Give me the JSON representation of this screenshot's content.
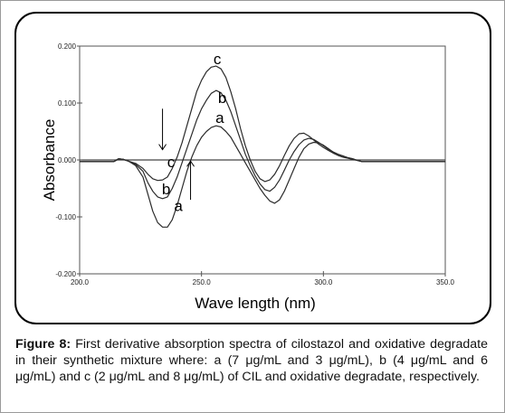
{
  "chart_data": {
    "type": "line",
    "xlabel": "Wave length (nm)",
    "ylabel": "Absorbance",
    "xlim": [
      200.0,
      350.0
    ],
    "ylim": [
      -0.2,
      0.2
    ],
    "x_ticks": [
      "200.0",
      "250.0",
      "300.0",
      "350.0"
    ],
    "y_ticks": [
      "0.200",
      "0.100",
      "0.000",
      "-0.100",
      "-0.200"
    ],
    "x_tick_values": [
      200,
      250,
      300,
      350
    ],
    "y_tick_values": [
      0.2,
      0.1,
      0.0,
      -0.1,
      -0.2
    ],
    "grid": false,
    "series": [
      {
        "name": "a",
        "color": "#2b2b2b",
        "x": [
          200,
          210,
          214,
          216,
          218,
          220,
          223,
          226,
          228,
          230,
          232,
          234,
          236,
          238,
          240,
          242,
          244,
          246,
          248,
          250,
          252,
          254,
          256,
          258,
          260,
          262,
          264,
          266,
          268,
          270,
          272,
          274,
          276,
          278,
          280,
          282,
          284,
          286,
          288,
          290,
          292,
          294,
          296,
          298,
          300,
          302,
          304,
          306,
          308,
          310,
          312,
          314,
          316,
          318,
          320,
          322,
          325,
          330,
          340,
          350
        ],
        "y": [
          -0.003,
          -0.003,
          -0.003,
          0.002,
          0.001,
          -0.002,
          -0.01,
          -0.03,
          -0.06,
          -0.09,
          -0.11,
          -0.118,
          -0.118,
          -0.105,
          -0.08,
          -0.05,
          -0.02,
          0.005,
          0.025,
          0.04,
          0.05,
          0.057,
          0.06,
          0.058,
          0.05,
          0.04,
          0.025,
          0.01,
          -0.005,
          -0.02,
          -0.035,
          -0.05,
          -0.062,
          -0.072,
          -0.076,
          -0.07,
          -0.055,
          -0.035,
          -0.015,
          0.005,
          0.02,
          0.028,
          0.031,
          0.03,
          0.026,
          0.02,
          0.014,
          0.01,
          0.007,
          0.004,
          0.002,
          -0.001,
          -0.003,
          -0.003,
          -0.003,
          -0.003,
          -0.003,
          -0.003,
          -0.003,
          -0.003
        ]
      },
      {
        "name": "b",
        "color": "#2b2b2b",
        "x": [
          200,
          210,
          214,
          216,
          218,
          220,
          223,
          226,
          228,
          230,
          232,
          234,
          236,
          238,
          240,
          242,
          244,
          246,
          248,
          250,
          252,
          254,
          256,
          258,
          260,
          262,
          264,
          266,
          268,
          270,
          272,
          274,
          276,
          278,
          280,
          282,
          284,
          286,
          288,
          290,
          292,
          294,
          296,
          298,
          300,
          302,
          304,
          306,
          308,
          310,
          312,
          314,
          316,
          318,
          320,
          322,
          325,
          330,
          340,
          350
        ],
        "y": [
          -0.003,
          -0.003,
          -0.003,
          0.002,
          0.001,
          -0.002,
          -0.008,
          -0.02,
          -0.04,
          -0.055,
          -0.065,
          -0.068,
          -0.065,
          -0.05,
          -0.03,
          -0.005,
          0.02,
          0.045,
          0.07,
          0.09,
          0.105,
          0.117,
          0.122,
          0.118,
          0.105,
          0.085,
          0.06,
          0.035,
          0.01,
          -0.01,
          -0.028,
          -0.042,
          -0.052,
          -0.055,
          -0.048,
          -0.035,
          -0.018,
          0.0,
          0.015,
          0.027,
          0.035,
          0.038,
          0.036,
          0.031,
          0.025,
          0.019,
          0.014,
          0.01,
          0.007,
          0.004,
          0.002,
          -0.001,
          -0.003,
          -0.003,
          -0.003,
          -0.003,
          -0.003,
          -0.003,
          -0.003,
          -0.003
        ]
      },
      {
        "name": "c",
        "color": "#2b2b2b",
        "x": [
          200,
          210,
          214,
          216,
          218,
          220,
          223,
          226,
          228,
          230,
          232,
          234,
          236,
          238,
          240,
          242,
          244,
          246,
          248,
          250,
          252,
          254,
          256,
          258,
          260,
          262,
          264,
          266,
          268,
          270,
          272,
          274,
          276,
          278,
          280,
          282,
          284,
          286,
          288,
          290,
          292,
          294,
          296,
          298,
          300,
          302,
          304,
          306,
          308,
          310,
          312,
          314,
          316,
          318,
          320,
          322,
          325,
          330,
          340,
          350
        ],
        "y": [
          -0.003,
          -0.003,
          -0.003,
          0.002,
          0.001,
          -0.002,
          -0.006,
          -0.015,
          -0.025,
          -0.033,
          -0.036,
          -0.035,
          -0.03,
          -0.015,
          0.005,
          0.03,
          0.06,
          0.09,
          0.12,
          0.14,
          0.155,
          0.163,
          0.165,
          0.16,
          0.145,
          0.12,
          0.09,
          0.055,
          0.025,
          0.0,
          -0.02,
          -0.033,
          -0.038,
          -0.035,
          -0.025,
          -0.01,
          0.008,
          0.025,
          0.038,
          0.046,
          0.047,
          0.042,
          0.035,
          0.028,
          0.022,
          0.017,
          0.012,
          0.008,
          0.005,
          0.003,
          0.001,
          -0.001,
          -0.003,
          -0.003,
          -0.003,
          -0.003,
          -0.003,
          -0.003,
          -0.003,
          -0.003
        ]
      }
    ],
    "curve_labels": [
      {
        "text": "c",
        "x": 256.5,
        "y": 0.168
      },
      {
        "text": "b",
        "x": 258.5,
        "y": 0.1
      },
      {
        "text": "a",
        "x": 257.5,
        "y": 0.065
      },
      {
        "text": "c",
        "x": 237.5,
        "y": -0.013
      },
      {
        "text": "b",
        "x": 235.5,
        "y": -0.06
      },
      {
        "text": "a",
        "x": 240.5,
        "y": -0.09
      }
    ],
    "arrows": [
      {
        "name": "down-arrow",
        "x": 234.0,
        "y_start": 0.09,
        "y_end": 0.018
      },
      {
        "name": "up-arrow",
        "x": 245.5,
        "y_start": -0.07,
        "y_end": -0.002
      }
    ]
  },
  "caption": {
    "label": "Figure 8:",
    "text": " First derivative absorption spectra of cilostazol and oxidative degradate in their synthetic mixture where: a (7 μg/mL and 3 μg/mL), b (4 μg/mL and 6 μg/mL) and c (2 μg/mL and 8 μg/mL) of CIL and oxidative degradate, respectively."
  }
}
